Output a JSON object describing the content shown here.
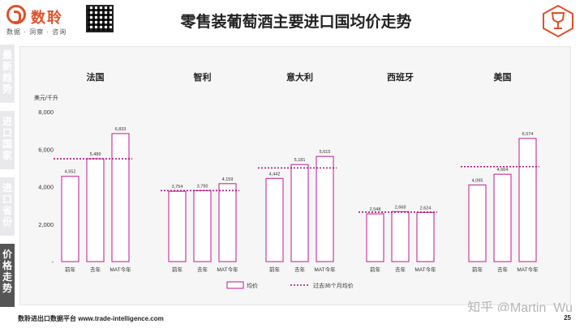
{
  "header": {
    "brand_name": "数聆",
    "brand_tagline": "数据 · 洞察 · 咨询",
    "title": "零售装葡萄酒主要进口国均价走势"
  },
  "sidebar": {
    "items": [
      {
        "label": "最新趋势",
        "active": false
      },
      {
        "label": "进口国家",
        "active": false
      },
      {
        "label": "进口省份",
        "active": false
      },
      {
        "label": "价格走势",
        "active": true
      }
    ]
  },
  "footer": {
    "text": "数聆进出口数据平台 www.trade-intelligence.com",
    "page": "25"
  },
  "watermark": "知乎 @Martin_Wu",
  "colors": {
    "accent": "#e0502a",
    "bar_stroke": "#c0188f",
    "avg_line": "#a8137c",
    "panel_bg": "#f6f6f6"
  },
  "chart_data": {
    "type": "bar",
    "ylabel": "美元/千升",
    "ylim": [
      0,
      8000
    ],
    "yticks": [
      {
        "value": 0,
        "label": "-"
      },
      {
        "value": 2000,
        "label": "2,000"
      },
      {
        "value": 4000,
        "label": "4,000"
      },
      {
        "value": 6000,
        "label": "6,000"
      },
      {
        "value": 8000,
        "label": "8,000"
      }
    ],
    "categories": [
      "前年",
      "去年",
      "MAT今年"
    ],
    "legend": {
      "bar": "均价",
      "line": "过去36个月均价",
      "position": "bottom"
    },
    "groups": [
      {
        "name": "法国",
        "values": [
          4552,
          5489,
          6833
        ],
        "labels": [
          "4,552",
          "5,489",
          "6,833"
        ],
        "avg36": 5489
      },
      {
        "name": "智利",
        "values": [
          3754,
          3790,
          4159
        ],
        "labels": [
          "3,754",
          "3,790",
          "4,159"
        ],
        "avg36": 3790
      },
      {
        "name": "意大利",
        "values": [
          4442,
          5181,
          5615
        ],
        "labels": [
          "4,442",
          "5,181",
          "5,615"
        ],
        "avg36": 5000
      },
      {
        "name": "西班牙",
        "values": [
          2548,
          2668,
          2624
        ],
        "labels": [
          "2,548",
          "2,668",
          "2,624"
        ],
        "avg36": 2640
      },
      {
        "name": "美国",
        "values": [
          4095,
          4664,
          6574
        ],
        "labels": [
          "4,095",
          "4,664",
          "6,574"
        ],
        "avg36": 5070
      }
    ]
  }
}
